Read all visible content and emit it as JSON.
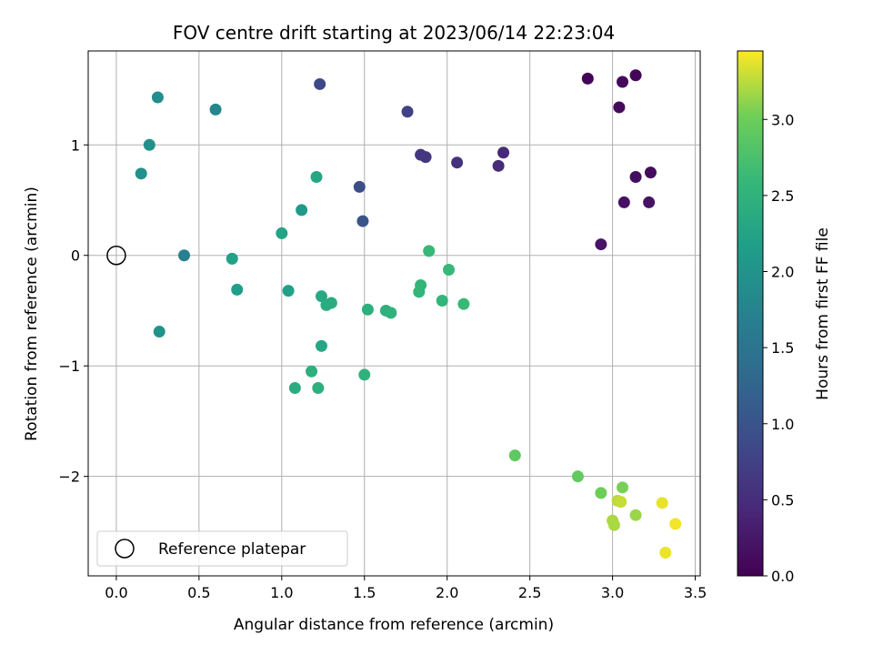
{
  "chart_data": {
    "type": "scatter",
    "title": "FOV centre drift starting at 2023/06/14 22:23:04",
    "xlabel": "Angular distance from reference (arcmin)",
    "ylabel": "Rotation from reference (arcmin)",
    "xlim": [
      -0.17,
      3.53
    ],
    "ylim": [
      -2.9,
      1.85
    ],
    "xticks": [
      0.0,
      0.5,
      1.0,
      1.5,
      2.0,
      2.5,
      3.0,
      3.5
    ],
    "xtick_labels": [
      "0.0",
      "0.5",
      "1.0",
      "1.5",
      "2.0",
      "2.5",
      "3.0",
      "3.5"
    ],
    "yticks": [
      -2,
      -1,
      0,
      1
    ],
    "ytick_labels": [
      "−2",
      "−1",
      "0",
      "1"
    ],
    "grid": true,
    "colormap": "viridis",
    "colorbar": {
      "label": "Hours from first FF file",
      "range": [
        0.0,
        3.45
      ],
      "ticks": [
        0.0,
        0.5,
        1.0,
        1.5,
        2.0,
        2.5,
        3.0
      ],
      "tick_labels": [
        "0.0",
        "0.5",
        "1.0",
        "1.5",
        "2.0",
        "2.5",
        "3.0"
      ]
    },
    "legend": {
      "placement": "lower-left",
      "entries": [
        "Reference platepar"
      ]
    },
    "reference_point": {
      "x": 0.0,
      "y": 0.0
    },
    "points": [
      {
        "x": 2.85,
        "y": 1.6,
        "hours": 0.02
      },
      {
        "x": 3.14,
        "y": 1.63,
        "hours": 0.05
      },
      {
        "x": 3.06,
        "y": 1.57,
        "hours": 0.08
      },
      {
        "x": 3.04,
        "y": 1.34,
        "hours": 0.1
      },
      {
        "x": 3.23,
        "y": 0.75,
        "hours": 0.12
      },
      {
        "x": 3.14,
        "y": 0.71,
        "hours": 0.15
      },
      {
        "x": 3.07,
        "y": 0.48,
        "hours": 0.18
      },
      {
        "x": 3.22,
        "y": 0.48,
        "hours": 0.2
      },
      {
        "x": 2.93,
        "y": 0.1,
        "hours": 0.22
      },
      {
        "x": 2.34,
        "y": 0.93,
        "hours": 0.45
      },
      {
        "x": 2.31,
        "y": 0.81,
        "hours": 0.48
      },
      {
        "x": 2.06,
        "y": 0.84,
        "hours": 0.55
      },
      {
        "x": 1.84,
        "y": 0.91,
        "hours": 0.6
      },
      {
        "x": 1.87,
        "y": 0.89,
        "hours": 0.62
      },
      {
        "x": 1.76,
        "y": 1.3,
        "hours": 0.75
      },
      {
        "x": 1.23,
        "y": 1.55,
        "hours": 0.85
      },
      {
        "x": 1.47,
        "y": 0.62,
        "hours": 0.9
      },
      {
        "x": 1.49,
        "y": 0.31,
        "hours": 1.0
      },
      {
        "x": 0.6,
        "y": 1.32,
        "hours": 1.8
      },
      {
        "x": 0.41,
        "y": 0.0,
        "hours": 1.7
      },
      {
        "x": 0.2,
        "y": 1.0,
        "hours": 1.95
      },
      {
        "x": 0.25,
        "y": 1.43,
        "hours": 1.9
      },
      {
        "x": 0.15,
        "y": 0.74,
        "hours": 1.95
      },
      {
        "x": 0.26,
        "y": -0.69,
        "hours": 1.98
      },
      {
        "x": 0.7,
        "y": -0.03,
        "hours": 2.2
      },
      {
        "x": 0.73,
        "y": -0.31,
        "hours": 2.15
      },
      {
        "x": 1.0,
        "y": 0.2,
        "hours": 2.25
      },
      {
        "x": 1.12,
        "y": 0.41,
        "hours": 2.1
      },
      {
        "x": 1.21,
        "y": 0.71,
        "hours": 2.3
      },
      {
        "x": 1.04,
        "y": -0.32,
        "hours": 2.2
      },
      {
        "x": 1.24,
        "y": -0.37,
        "hours": 2.35
      },
      {
        "x": 1.27,
        "y": -0.45,
        "hours": 2.4
      },
      {
        "x": 1.3,
        "y": -0.43,
        "hours": 2.4
      },
      {
        "x": 1.24,
        "y": -0.82,
        "hours": 2.3
      },
      {
        "x": 1.18,
        "y": -1.05,
        "hours": 2.45
      },
      {
        "x": 1.08,
        "y": -1.2,
        "hours": 2.4
      },
      {
        "x": 1.22,
        "y": -1.2,
        "hours": 2.45
      },
      {
        "x": 1.5,
        "y": -1.08,
        "hours": 2.5
      },
      {
        "x": 1.52,
        "y": -0.49,
        "hours": 2.45
      },
      {
        "x": 1.63,
        "y": -0.5,
        "hours": 2.45
      },
      {
        "x": 1.66,
        "y": -0.52,
        "hours": 2.5
      },
      {
        "x": 1.83,
        "y": -0.33,
        "hours": 2.55
      },
      {
        "x": 1.84,
        "y": -0.27,
        "hours": 2.55
      },
      {
        "x": 1.89,
        "y": 0.04,
        "hours": 2.6
      },
      {
        "x": 1.97,
        "y": -0.41,
        "hours": 2.55
      },
      {
        "x": 2.01,
        "y": -0.13,
        "hours": 2.6
      },
      {
        "x": 2.1,
        "y": -0.44,
        "hours": 2.6
      },
      {
        "x": 2.41,
        "y": -1.81,
        "hours": 2.9
      },
      {
        "x": 2.79,
        "y": -2.0,
        "hours": 2.92
      },
      {
        "x": 2.93,
        "y": -2.15,
        "hours": 3.0
      },
      {
        "x": 3.0,
        "y": -2.4,
        "hours": 3.2
      },
      {
        "x": 3.01,
        "y": -2.44,
        "hours": 3.2
      },
      {
        "x": 3.03,
        "y": -2.22,
        "hours": 3.25
      },
      {
        "x": 3.05,
        "y": -2.23,
        "hours": 3.28
      },
      {
        "x": 3.06,
        "y": -2.1,
        "hours": 3.05
      },
      {
        "x": 3.14,
        "y": -2.35,
        "hours": 3.15
      },
      {
        "x": 3.3,
        "y": -2.24,
        "hours": 3.38
      },
      {
        "x": 3.32,
        "y": -2.69,
        "hours": 3.4
      },
      {
        "x": 3.38,
        "y": -2.43,
        "hours": 3.42
      }
    ]
  }
}
